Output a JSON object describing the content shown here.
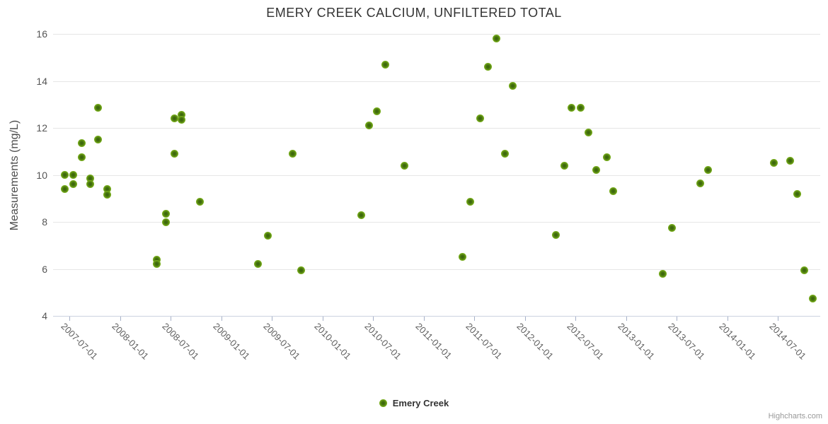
{
  "credits": "Highcharts.com",
  "chart_data": {
    "type": "scatter",
    "title": "EMERY CREEK CALCIUM, UNFILTERED TOTAL",
    "xlabel": "",
    "ylabel": "Measurements (mg/L)",
    "ylim": [
      4,
      16
    ],
    "y_ticks": [
      4,
      6,
      8,
      10,
      12,
      14,
      16
    ],
    "x_tick_labels": [
      "2007-07-01",
      "2008-01-01",
      "2008-07-01",
      "2009-01-01",
      "2009-07-01",
      "2010-01-01",
      "2010-07-01",
      "2011-01-01",
      "2011-07-01",
      "2012-01-01",
      "2012-07-01",
      "2013-01-01",
      "2013-07-01",
      "2014-01-01",
      "2014-07-01"
    ],
    "x_range": [
      "2007-05-04",
      "2014-12-01"
    ],
    "grid": true,
    "legend_position": "bottom-center",
    "marker_color": "#8bc21c",
    "marker_color_center": "#35610b",
    "series": [
      {
        "name": "Emery Creek",
        "points": [
          {
            "date": "2007-06-15",
            "value": 10.0
          },
          {
            "date": "2007-06-15",
            "value": 9.4
          },
          {
            "date": "2007-07-15",
            "value": 10.0
          },
          {
            "date": "2007-07-15",
            "value": 9.6
          },
          {
            "date": "2007-08-15",
            "value": 11.35
          },
          {
            "date": "2007-08-15",
            "value": 10.75
          },
          {
            "date": "2007-09-15",
            "value": 9.85
          },
          {
            "date": "2007-09-15",
            "value": 9.6
          },
          {
            "date": "2007-10-13",
            "value": 12.85
          },
          {
            "date": "2007-10-13",
            "value": 11.5
          },
          {
            "date": "2007-11-15",
            "value": 9.4
          },
          {
            "date": "2007-11-15",
            "value": 9.15
          },
          {
            "date": "2008-05-12",
            "value": 6.4
          },
          {
            "date": "2008-05-12",
            "value": 6.2
          },
          {
            "date": "2008-06-15",
            "value": 8.35
          },
          {
            "date": "2008-06-15",
            "value": 8.0
          },
          {
            "date": "2008-07-15",
            "value": 12.4
          },
          {
            "date": "2008-07-15",
            "value": 10.9
          },
          {
            "date": "2008-08-10",
            "value": 12.55
          },
          {
            "date": "2008-08-10",
            "value": 12.35
          },
          {
            "date": "2008-10-15",
            "value": 8.85
          },
          {
            "date": "2009-05-12",
            "value": 6.2
          },
          {
            "date": "2009-06-16",
            "value": 7.4
          },
          {
            "date": "2009-09-14",
            "value": 10.9
          },
          {
            "date": "2009-10-14",
            "value": 5.95
          },
          {
            "date": "2010-05-20",
            "value": 8.3
          },
          {
            "date": "2010-06-18",
            "value": 12.1
          },
          {
            "date": "2010-07-16",
            "value": 12.7
          },
          {
            "date": "2010-08-16",
            "value": 14.7
          },
          {
            "date": "2010-10-22",
            "value": 10.4
          },
          {
            "date": "2011-05-21",
            "value": 6.5
          },
          {
            "date": "2011-06-17",
            "value": 8.85
          },
          {
            "date": "2011-07-23",
            "value": 12.4
          },
          {
            "date": "2011-08-20",
            "value": 14.6
          },
          {
            "date": "2011-09-19",
            "value": 15.8
          },
          {
            "date": "2011-10-21",
            "value": 10.9
          },
          {
            "date": "2011-11-18",
            "value": 13.8
          },
          {
            "date": "2012-04-22",
            "value": 7.45
          },
          {
            "date": "2012-05-23",
            "value": 10.4
          },
          {
            "date": "2012-06-16",
            "value": 12.85
          },
          {
            "date": "2012-07-20",
            "value": 12.85
          },
          {
            "date": "2012-08-17",
            "value": 11.8
          },
          {
            "date": "2012-09-15",
            "value": 10.2
          },
          {
            "date": "2012-10-23",
            "value": 10.75
          },
          {
            "date": "2012-11-15",
            "value": 9.3
          },
          {
            "date": "2013-05-13",
            "value": 5.8
          },
          {
            "date": "2013-06-14",
            "value": 7.75
          },
          {
            "date": "2013-09-23",
            "value": 9.65
          },
          {
            "date": "2013-10-21",
            "value": 10.2
          },
          {
            "date": "2014-06-16",
            "value": 10.5
          },
          {
            "date": "2014-08-14",
            "value": 10.6
          },
          {
            "date": "2014-09-09",
            "value": 9.2
          },
          {
            "date": "2014-10-05",
            "value": 5.95
          },
          {
            "date": "2014-11-05",
            "value": 4.75
          }
        ]
      }
    ]
  }
}
